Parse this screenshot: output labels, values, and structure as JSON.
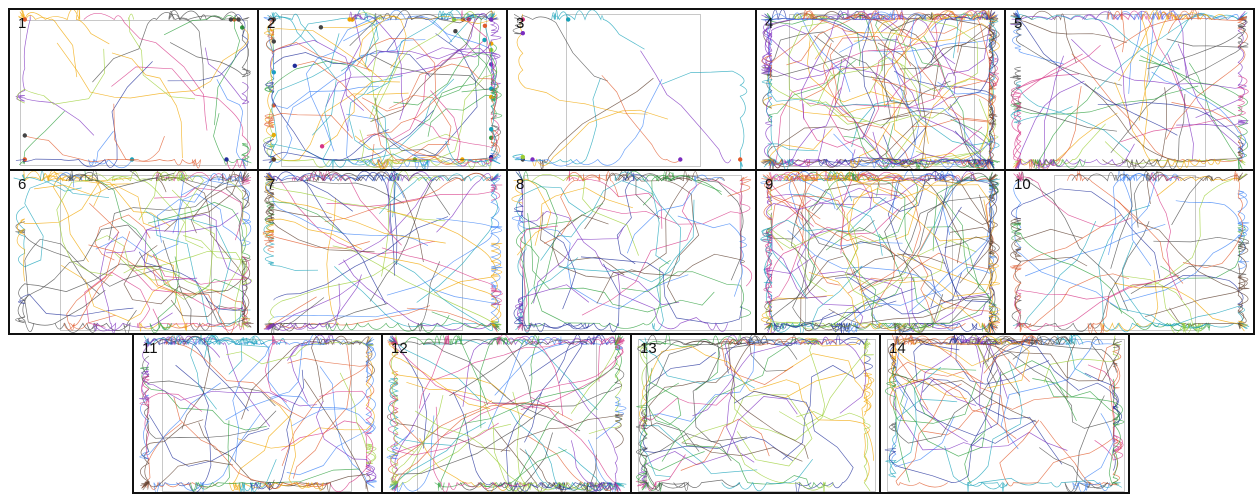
{
  "panels": [
    {
      "label": "1",
      "style": "two-swarm-sparse"
    },
    {
      "label": "2",
      "style": "two-swarm-dense"
    },
    {
      "label": "3",
      "style": "small-clusters"
    },
    {
      "label": "4",
      "style": "dense-tangle"
    },
    {
      "label": "5",
      "style": "crossing-lines"
    },
    {
      "label": "6",
      "style": "loops"
    },
    {
      "label": "7",
      "style": "crossing-lines"
    },
    {
      "label": "8",
      "style": "wide-loops"
    },
    {
      "label": "9",
      "style": "dense-tangle"
    },
    {
      "label": "10",
      "style": "vertical-tangle"
    },
    {
      "label": "11",
      "style": "x-shape"
    },
    {
      "label": "12",
      "style": "horizontal-tangle"
    },
    {
      "label": "13",
      "style": "wide-loops"
    },
    {
      "label": "14",
      "style": "twin-cores"
    }
  ],
  "colors": [
    "#1f2d9a",
    "#e05a2b",
    "#2a9d3a",
    "#7b2cbf",
    "#17a2b8",
    "#d63384",
    "#f0a500",
    "#5c3d2e",
    "#3b82f6",
    "#9acd32",
    "#444444"
  ]
}
